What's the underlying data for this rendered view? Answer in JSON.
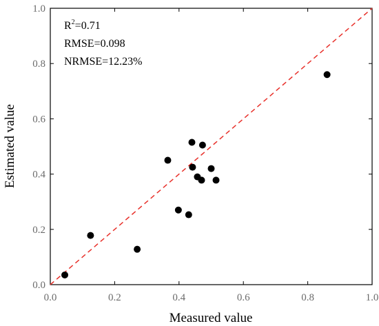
{
  "chart_data": {
    "type": "scatter",
    "xlabel": "Measured value",
    "ylabel": "Estimated value",
    "xlim": [
      0.0,
      1.0
    ],
    "ylim": [
      0.0,
      1.0
    ],
    "x_ticks": [
      "0.0",
      "0.2",
      "0.4",
      "0.6",
      "0.8",
      "1.0"
    ],
    "y_ticks": [
      "0.0",
      "0.2",
      "0.4",
      "0.6",
      "0.8",
      "1.0"
    ],
    "grid": false,
    "reference_line": {
      "x": [
        0,
        1
      ],
      "y": [
        0,
        1
      ],
      "style": "dashed",
      "color": "#e8302a"
    },
    "annotations": {
      "r2_base": "R",
      "r2_sup": "2",
      "r2_value": "=0.71",
      "rmse": "RMSE=0.098",
      "nrmse": "NRMSE=12.23%"
    },
    "points": [
      {
        "x": 0.045,
        "y": 0.035
      },
      {
        "x": 0.125,
        "y": 0.178
      },
      {
        "x": 0.27,
        "y": 0.128
      },
      {
        "x": 0.365,
        "y": 0.45
      },
      {
        "x": 0.398,
        "y": 0.27
      },
      {
        "x": 0.43,
        "y": 0.253
      },
      {
        "x": 0.44,
        "y": 0.515
      },
      {
        "x": 0.442,
        "y": 0.425
      },
      {
        "x": 0.457,
        "y": 0.39
      },
      {
        "x": 0.47,
        "y": 0.378
      },
      {
        "x": 0.473,
        "y": 0.505
      },
      {
        "x": 0.5,
        "y": 0.42
      },
      {
        "x": 0.515,
        "y": 0.378
      },
      {
        "x": 0.86,
        "y": 0.76
      }
    ],
    "point_color": "#000000",
    "line_color": "#e8302a"
  }
}
